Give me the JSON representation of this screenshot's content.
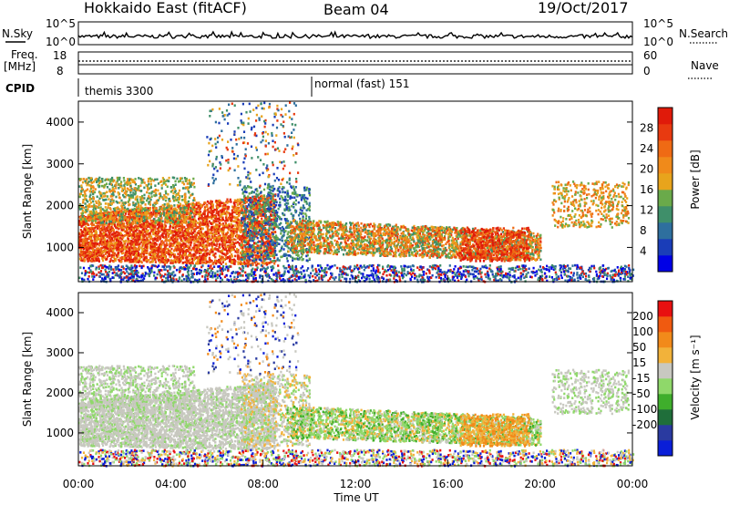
{
  "header": {
    "station": "Hokkaido East (fitACF)",
    "beam": "Beam 04",
    "date": "19/Oct/2017"
  },
  "top_panels": {
    "nsky_label": "N.Sky",
    "nsky_ticks": [
      "10^5",
      "10^0"
    ],
    "nsearch_label": "N.Search",
    "nsearch_ticks": [
      "10^5",
      "10^0"
    ],
    "freq_label": "Freq.",
    "freq_unit": "[MHz]",
    "freq_ticks": [
      "18",
      "8"
    ],
    "nave_label": "Nave",
    "nave_ticks": [
      "60",
      "0"
    ],
    "cpid_label": "CPID",
    "cpid_segments": [
      "themis 3300",
      "normal (fast) 151"
    ]
  },
  "chart_data": [
    {
      "type": "heatmap",
      "panel": "power",
      "ylabel": "Slant Range [km]",
      "yticks": [
        1000,
        2000,
        3000,
        4000
      ],
      "ylim": [
        180,
        4500
      ],
      "xlim": [
        0,
        24
      ],
      "colorbar": {
        "label": "Power [dB]",
        "ticks": [
          4,
          8,
          12,
          16,
          20,
          24,
          28
        ],
        "colors": [
          "#0000e6",
          "#1a3db8",
          "#2e6f9e",
          "#3f8f6a",
          "#6aaa4a",
          "#e8a41c",
          "#f08a1a",
          "#ef6a14",
          "#e83a10",
          "#e01a0a"
        ]
      }
    },
    {
      "type": "heatmap",
      "panel": "velocity",
      "ylabel": "Slant Range [km]",
      "yticks": [
        1000,
        2000,
        3000,
        4000
      ],
      "ylim": [
        180,
        4500
      ],
      "xlim": [
        0,
        24
      ],
      "xlabel": "Time UT",
      "xticks": [
        "00:00",
        "04:00",
        "08:00",
        "12:00",
        "16:00",
        "20:00",
        "00:00"
      ],
      "colorbar": {
        "label": "Velocity [m s⁻¹]",
        "ticks": [
          200,
          100,
          50,
          15,
          -15,
          -50,
          -100,
          -200
        ],
        "colors": [
          "#0a1ed8",
          "#2a3aa0",
          "#1f6e3a",
          "#3fae2c",
          "#8fd86a",
          "#c8c8c0",
          "#f2b23a",
          "#f28a1a",
          "#f05a10",
          "#e81010"
        ]
      }
    }
  ]
}
